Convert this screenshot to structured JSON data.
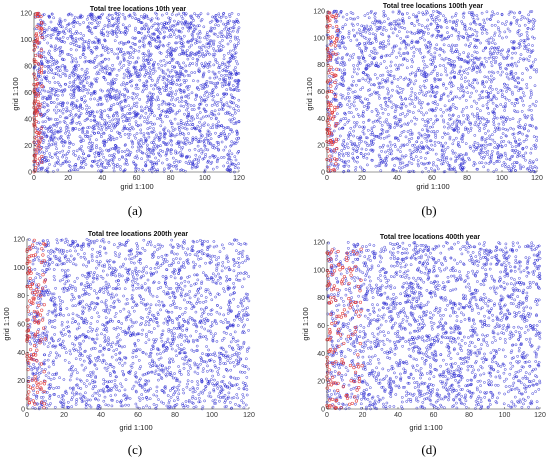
{
  "colors": {
    "blue": "#2a2ad0",
    "red": "#e03a3a",
    "axis": "#333333"
  },
  "chart_data": [
    {
      "type": "scatter",
      "title": "Total tree locations 10th year",
      "xlabel": "grid 1:100",
      "ylabel": "grid 1:100",
      "xlim": [
        0,
        120
      ],
      "ylim": [
        0,
        120
      ],
      "xticks": [
        "0",
        "20",
        "40",
        "60",
        "80",
        "100",
        "120"
      ],
      "yticks": [
        "0",
        "20",
        "40",
        "60",
        "80",
        "100",
        "120"
      ],
      "caption": "(a)",
      "series": [
        {
          "color": "#2a2ad0",
          "density": "about 2800 points spread over x 0–120, y 0–120"
        },
        {
          "color": "#e03a3a",
          "density": "red points concentrated along x 0–5, y 0–120"
        }
      ]
    },
    {
      "type": "scatter",
      "title": "Total tree locations 100th year",
      "xlabel": "grid 1:100",
      "ylabel": "grid 1:100",
      "xlim": [
        0,
        120
      ],
      "ylim": [
        0,
        120
      ],
      "xticks": [
        "0",
        "20",
        "40",
        "60",
        "80",
        "100",
        "120"
      ],
      "yticks": [
        "0",
        "20",
        "40",
        "60",
        "80",
        "100",
        "120"
      ],
      "caption": "(b)",
      "series": [
        {
          "color": "#2a2ad0",
          "density": "about 2200 points spread over x 0–120, y 0–120"
        },
        {
          "color": "#e03a3a",
          "density": "red points along x 0–6, y 0–120"
        }
      ]
    },
    {
      "type": "scatter",
      "title": "Total tree locations 200th year",
      "xlabel": "grid 1:100",
      "ylabel": "grid 1:100",
      "xlim": [
        0,
        120
      ],
      "ylim": [
        0,
        120
      ],
      "xticks": [
        "0",
        "20",
        "40",
        "60",
        "80",
        "100",
        "120"
      ],
      "yticks": [
        "0",
        "20",
        "40",
        "60",
        "80",
        "100",
        "120"
      ],
      "caption": "(c)",
      "series": [
        {
          "color": "#2a2ad0",
          "density": "about 2200 points spread over x 0–120, y 0–120"
        },
        {
          "color": "#e03a3a",
          "density": "red points along x 0–10, y 0–120"
        }
      ]
    },
    {
      "type": "scatter",
      "title": "Total tree locations 400th year",
      "xlabel": "grid 1:100",
      "ylabel": "grid 1:100",
      "xlim": [
        0,
        120
      ],
      "ylim": [
        0,
        120
      ],
      "xticks": [
        "0",
        "20",
        "40",
        "60",
        "80",
        "100",
        "120"
      ],
      "yticks": [
        "0",
        "20",
        "40",
        "60",
        "80",
        "100",
        "120"
      ],
      "caption": "(d)",
      "series": [
        {
          "color": "#2a2ad0",
          "density": "about 2200 points spread over x 0–120, y 0–120"
        },
        {
          "color": "#e03a3a",
          "density": "red points along x 0–20, y 0–115"
        }
      ]
    }
  ]
}
